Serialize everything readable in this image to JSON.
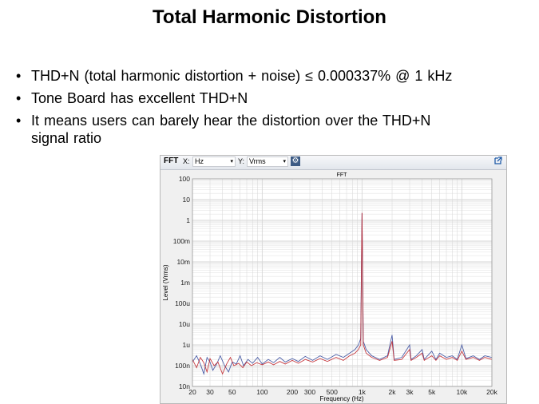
{
  "slide": {
    "title": "Total Harmonic Distortion",
    "bullets": [
      "THD+N  (total harmonic  distortion + noise) ≤ 0.000337% @ 1 kHz",
      "Tone Board has excellent THD+N",
      "It means users can barely hear the distortion over the THD+N",
      "signal ratio"
    ],
    "bullet_glyph": "•"
  },
  "panel": {
    "name": "FFT",
    "x_label": "X:",
    "x_unit": "Hz",
    "y_label": "Y:",
    "y_unit": "Vrms",
    "dropdown_arrow": "▾",
    "settings_icon": "gear-icon",
    "export_icon": "external-link-icon"
  },
  "chart_data": {
    "type": "line",
    "title": "FFT",
    "xlabel": "Frequency (Hz)",
    "ylabel": "Level (Vrms)",
    "x_scale": "log",
    "y_scale": "log",
    "xlim": [
      20,
      20000
    ],
    "ylim": [
      1e-08,
      100
    ],
    "grid": true,
    "x_ticks": [
      {
        "value": 20,
        "label": "20"
      },
      {
        "value": 30,
        "label": "30"
      },
      {
        "value": 50,
        "label": "50"
      },
      {
        "value": 100,
        "label": "100"
      },
      {
        "value": 200,
        "label": "200"
      },
      {
        "value": 300,
        "label": "300"
      },
      {
        "value": 500,
        "label": "500"
      },
      {
        "value": 1000,
        "label": "1k"
      },
      {
        "value": 2000,
        "label": "2k"
      },
      {
        "value": 3000,
        "label": "3k"
      },
      {
        "value": 5000,
        "label": "5k"
      },
      {
        "value": 10000,
        "label": "10k"
      },
      {
        "value": 20000,
        "label": "20k"
      }
    ],
    "y_ticks": [
      {
        "value": 100,
        "label": "100"
      },
      {
        "value": 10,
        "label": "10"
      },
      {
        "value": 1,
        "label": "1"
      },
      {
        "value": 0.1,
        "label": "100m"
      },
      {
        "value": 0.01,
        "label": "10m"
      },
      {
        "value": 0.001,
        "label": "1m"
      },
      {
        "value": 0.0001,
        "label": "100u"
      },
      {
        "value": 1e-05,
        "label": "10u"
      },
      {
        "value": 1e-06,
        "label": "1u"
      },
      {
        "value": 1e-07,
        "label": "100n"
      },
      {
        "value": 1e-08,
        "label": "10n"
      }
    ],
    "series": [
      {
        "color": "#3b4f9e",
        "points": [
          [
            20,
            1.5e-07
          ],
          [
            22,
            3e-07
          ],
          [
            24,
            1.2e-07
          ],
          [
            26,
            4e-08
          ],
          [
            28,
            2.5e-07
          ],
          [
            30,
            1.5e-07
          ],
          [
            32,
            6e-08
          ],
          [
            35,
            1.2e-07
          ],
          [
            38,
            3e-07
          ],
          [
            42,
            1e-07
          ],
          [
            46,
            5e-08
          ],
          [
            50,
            1.5e-07
          ],
          [
            55,
            1.2e-07
          ],
          [
            60,
            3e-07
          ],
          [
            65,
            1e-07
          ],
          [
            72,
            2e-07
          ],
          [
            80,
            1.3e-07
          ],
          [
            90,
            2.5e-07
          ],
          [
            100,
            1.2e-07
          ],
          [
            115,
            2e-07
          ],
          [
            130,
            1.4e-07
          ],
          [
            150,
            2.5e-07
          ],
          [
            170,
            1.5e-07
          ],
          [
            200,
            2.2e-07
          ],
          [
            230,
            1.6e-07
          ],
          [
            270,
            2.8e-07
          ],
          [
            320,
            1.8e-07
          ],
          [
            380,
            3e-07
          ],
          [
            450,
            2e-07
          ],
          [
            550,
            3.5e-07
          ],
          [
            650,
            2.5e-07
          ],
          [
            750,
            4e-07
          ],
          [
            850,
            6e-07
          ],
          [
            920,
            1e-06
          ],
          [
            970,
            2e-06
          ],
          [
            1000,
            2.2
          ],
          [
            1030,
            1.5e-06
          ],
          [
            1100,
            6e-07
          ],
          [
            1250,
            3e-07
          ],
          [
            1500,
            2e-07
          ],
          [
            1800,
            3e-07
          ],
          [
            2000,
            3e-06
          ],
          [
            2100,
            2e-07
          ],
          [
            2500,
            2.5e-07
          ],
          [
            3000,
            1e-06
          ],
          [
            3100,
            2e-07
          ],
          [
            3500,
            3e-07
          ],
          [
            4000,
            6e-07
          ],
          [
            4200,
            2e-07
          ],
          [
            5000,
            5e-07
          ],
          [
            5500,
            2e-07
          ],
          [
            6000,
            4e-07
          ],
          [
            7000,
            2.5e-07
          ],
          [
            8000,
            3e-07
          ],
          [
            9000,
            2e-07
          ],
          [
            10000,
            1e-06
          ],
          [
            11000,
            2.2e-07
          ],
          [
            13000,
            3e-07
          ],
          [
            15000,
            2e-07
          ],
          [
            17000,
            3e-07
          ],
          [
            20000,
            2.5e-07
          ]
        ]
      },
      {
        "color": "#c0272d",
        "points": [
          [
            20,
            2e-07
          ],
          [
            22,
            8e-08
          ],
          [
            24,
            2.5e-07
          ],
          [
            26,
            1.4e-07
          ],
          [
            28,
            5e-08
          ],
          [
            30,
            2.2e-07
          ],
          [
            33,
            1e-07
          ],
          [
            36,
            1.5e-07
          ],
          [
            40,
            4e-08
          ],
          [
            44,
            1.2e-07
          ],
          [
            48,
            2.5e-07
          ],
          [
            52,
            1e-07
          ],
          [
            58,
            1.3e-07
          ],
          [
            64,
            8e-08
          ],
          [
            70,
            1.5e-07
          ],
          [
            78,
            1e-07
          ],
          [
            88,
            1.4e-07
          ],
          [
            100,
            1.1e-07
          ],
          [
            115,
            1.5e-07
          ],
          [
            130,
            1.1e-07
          ],
          [
            150,
            1.6e-07
          ],
          [
            170,
            1.2e-07
          ],
          [
            200,
            1.8e-07
          ],
          [
            230,
            1.3e-07
          ],
          [
            270,
            2e-07
          ],
          [
            320,
            1.5e-07
          ],
          [
            380,
            2.2e-07
          ],
          [
            450,
            1.6e-07
          ],
          [
            550,
            2.5e-07
          ],
          [
            650,
            1.8e-07
          ],
          [
            750,
            3e-07
          ],
          [
            850,
            4e-07
          ],
          [
            920,
            6e-07
          ],
          [
            970,
            1e-06
          ],
          [
            1000,
            2.3
          ],
          [
            1030,
            1e-06
          ],
          [
            1100,
            4e-07
          ],
          [
            1250,
            2.5e-07
          ],
          [
            1500,
            1.8e-07
          ],
          [
            1800,
            2.5e-07
          ],
          [
            2000,
            1.5e-06
          ],
          [
            2100,
            1.8e-07
          ],
          [
            2500,
            2e-07
          ],
          [
            3000,
            6e-07
          ],
          [
            3100,
            1.8e-07
          ],
          [
            3500,
            2.5e-07
          ],
          [
            4000,
            4e-07
          ],
          [
            4200,
            1.8e-07
          ],
          [
            5000,
            3e-07
          ],
          [
            5500,
            1.8e-07
          ],
          [
            6000,
            3e-07
          ],
          [
            7000,
            2e-07
          ],
          [
            8000,
            2.5e-07
          ],
          [
            9000,
            1.8e-07
          ],
          [
            10000,
            5e-07
          ],
          [
            11000,
            2e-07
          ],
          [
            13000,
            2.5e-07
          ],
          [
            15000,
            1.8e-07
          ],
          [
            17000,
            2.5e-07
          ],
          [
            20000,
            2e-07
          ]
        ]
      }
    ],
    "grid_color": "#d6d6d6",
    "plot_background": "#ffffff"
  }
}
